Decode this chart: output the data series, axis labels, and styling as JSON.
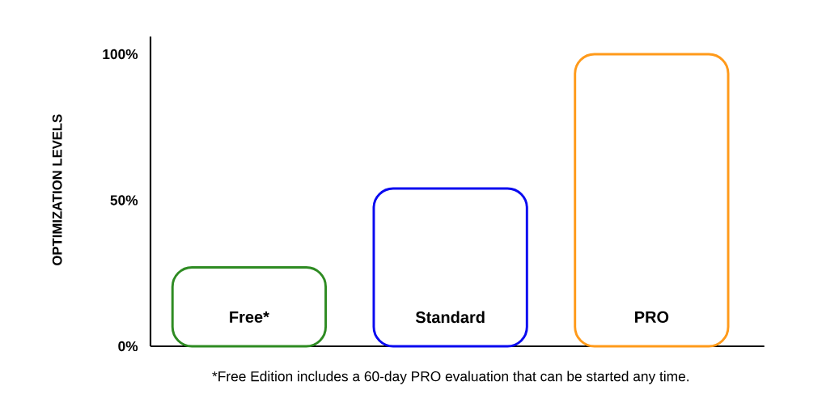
{
  "chart_data": {
    "type": "bar",
    "ylabel": "OPTIMIZATION LEVELS",
    "categories": [
      "Free*",
      "Standard",
      "PRO"
    ],
    "values": [
      27,
      54,
      100
    ],
    "colors": [
      "#2e8b22",
      "#0a0af0",
      "#ff9a1a"
    ],
    "ylim": [
      0,
      106
    ],
    "yticks": [
      {
        "value": 0,
        "label": "0%"
      },
      {
        "value": 50,
        "label": "50%"
      },
      {
        "value": 100,
        "label": "100%"
      }
    ],
    "grid": false,
    "annotations": [
      "*Free Edition includes a 60-day PRO evaluation that can be started any time."
    ]
  }
}
